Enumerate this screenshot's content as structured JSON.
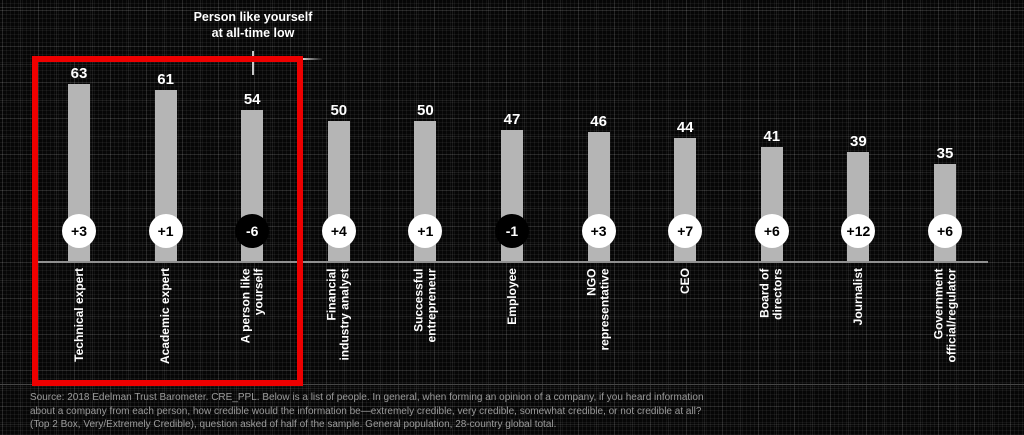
{
  "chart_data": {
    "type": "bar",
    "title": "",
    "categories": [
      "Technical expert",
      "Academic expert",
      "A person like yourself",
      "Financial industry analyst",
      "Successful entrepreneur",
      "Employee",
      "NGO representative",
      "CEO",
      "Board of directors",
      "Journalist",
      "Government official/regulator"
    ],
    "category_label_lines": [
      [
        "Technical expert"
      ],
      [
        "Academic expert"
      ],
      [
        "A person like",
        "yourself"
      ],
      [
        "Financial",
        "industry analyst"
      ],
      [
        "Successful",
        "entrepreneur"
      ],
      [
        "Employee"
      ],
      [
        "NGO",
        "representative"
      ],
      [
        "CEO"
      ],
      [
        "Board of",
        "directors"
      ],
      [
        "Journalist"
      ],
      [
        "Government",
        "official/regulator"
      ]
    ],
    "values": [
      63,
      61,
      54,
      50,
      50,
      47,
      46,
      44,
      41,
      39,
      35
    ],
    "changes": [
      "+3",
      "+1",
      "-6",
      "+4",
      "+1",
      "-1",
      "+3",
      "+7",
      "+6",
      "+12",
      "+6"
    ],
    "ylim": [
      0,
      70
    ],
    "grid": false,
    "legend": null,
    "annotation": {
      "line1": "Person like yourself",
      "line2": "at all-time low",
      "points_to": "A person like yourself"
    },
    "highlighted_categories": [
      "Technical expert",
      "Academic expert",
      "A person like yourself"
    ],
    "colors": {
      "bar": "#b5b5b5",
      "value_label": "#ffffff",
      "axis": "#909090",
      "highlight_box": "#ee0000",
      "badge_positive_bg": "#ffffff",
      "badge_positive_text": "#000000",
      "badge_negative_bg": "#000000",
      "badge_negative_text": "#ffffff",
      "background": "#060606",
      "footer_text": "#9b9b9b"
    }
  },
  "footer": {
    "lines": [
      "Source: 2018 Edelman Trust Barometer. CRE_PPL. Below is a list of people. In general, when forming an opinion of a company, if you heard information",
      "about a company from each person, how credible would the information be—extremely credible, very credible, somewhat credible, or not credible at all?",
      "(Top 2 Box, Very/Extremely Credible), question asked of half of the sample. General population, 28-country global total."
    ]
  }
}
